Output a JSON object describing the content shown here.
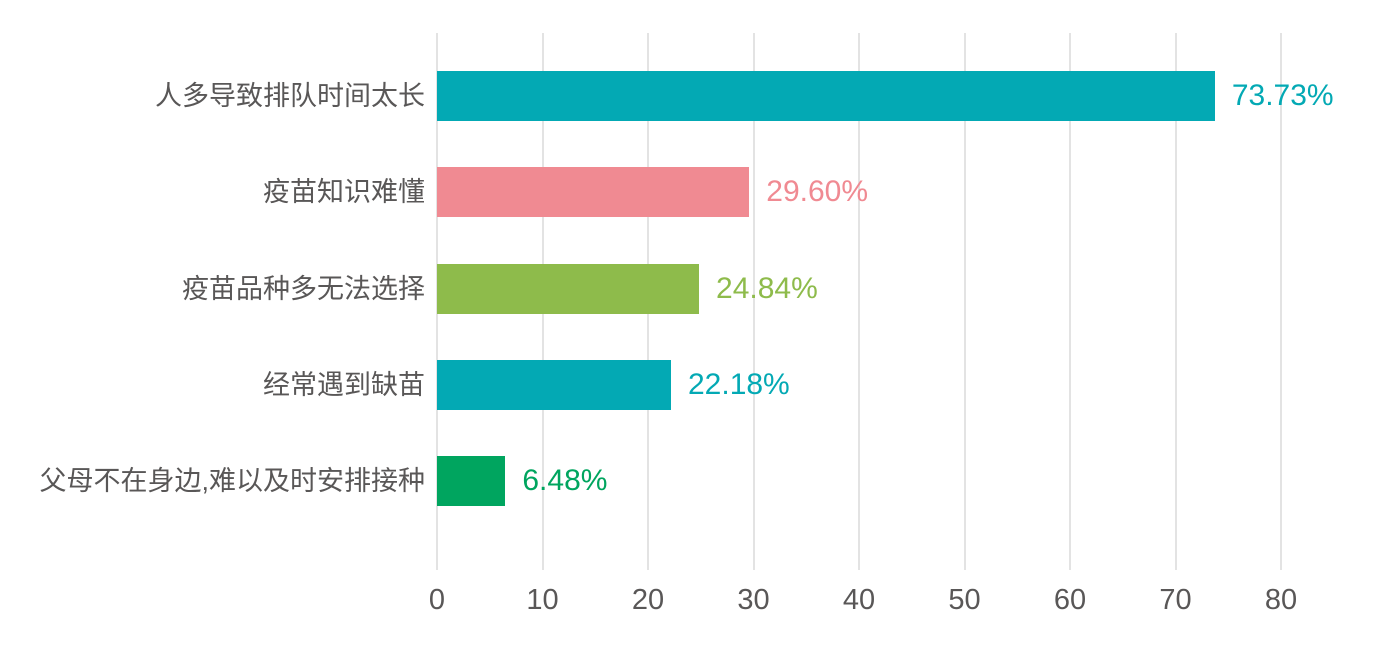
{
  "chart_data": {
    "type": "bar",
    "orientation": "horizontal",
    "title": "",
    "xlabel": "",
    "ylabel": "",
    "categories": [
      "人多导致排队时间太长",
      "疫苗知识难懂",
      "疫苗品种多无法选择",
      "经常遇到缺苗",
      "父母不在身边,难以及时安排接种"
    ],
    "values": [
      73.73,
      29.6,
      24.84,
      22.18,
      6.48
    ],
    "value_labels": [
      "73.73%",
      "29.60%",
      "24.84%",
      "22.18%",
      "6.48%"
    ],
    "bar_colors": [
      "#03a9b4",
      "#f08a92",
      "#8ebb4b",
      "#03a9b4",
      "#00a55f"
    ],
    "xlim": [
      0,
      80
    ],
    "x_ticks": [
      "0",
      "10",
      "20",
      "30",
      "40",
      "50",
      "60",
      "70",
      "80"
    ],
    "grid": "vertical-only",
    "legend": "none",
    "style": {
      "gridline_color": "#e3e3e3",
      "category_label_color": "#595757",
      "tick_label_color": "#595757",
      "background_color": "#ffffff"
    }
  }
}
